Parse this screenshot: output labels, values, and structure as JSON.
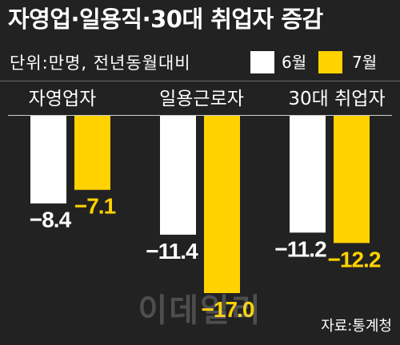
{
  "colors": {
    "background": "#222222",
    "text": "#ffffff"
  },
  "source": "자료:통계청",
  "watermark": "이데일리",
  "chart_data": {
    "type": "bar",
    "title": "자영업·일용직·30대 취업자 증감",
    "subtitle": "단위:만명, 전년동월대비",
    "categories": [
      "자영업자",
      "일용근로자",
      "30대 취업자"
    ],
    "series": [
      {
        "name": "6월",
        "color": "#ffffff",
        "values": [
          -8.4,
          -11.4,
          -11.2
        ],
        "labels": [
          "−8.4",
          "−11.4",
          "−11.2"
        ]
      },
      {
        "name": "7월",
        "color": "#ffd200",
        "values": [
          -7.1,
          -17.0,
          -12.2
        ],
        "labels": [
          "−7.1",
          "−17.0",
          "−12.2"
        ]
      }
    ],
    "ylim": [
      -17,
      0
    ],
    "grid": false,
    "legend": "top-right"
  }
}
